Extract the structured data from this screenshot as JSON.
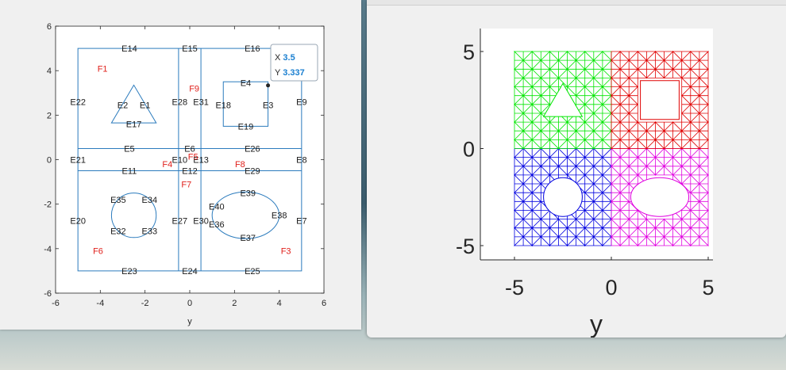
{
  "left_figure": {
    "xlabel": "y",
    "x_ticks": [
      "-6",
      "-4",
      "-2",
      "0",
      "2",
      "4",
      "6"
    ],
    "y_ticks": [
      "6",
      "4",
      "2",
      "0",
      "-2",
      "-4",
      "-6"
    ],
    "edge_labels": [
      {
        "t": "E14",
        "x": -2.7,
        "y": 5.0
      },
      {
        "t": "E15",
        "x": 0,
        "y": 5.0
      },
      {
        "t": "E16",
        "x": 2.8,
        "y": 5.0
      },
      {
        "t": "E22",
        "x": -5.0,
        "y": 2.6
      },
      {
        "t": "E2",
        "x": -3.0,
        "y": 2.45
      },
      {
        "t": "E1",
        "x": -2.0,
        "y": 2.45
      },
      {
        "t": "E28",
        "x": -0.45,
        "y": 2.6
      },
      {
        "t": "E31",
        "x": 0.5,
        "y": 2.6
      },
      {
        "t": "E18",
        "x": 1.5,
        "y": 2.45
      },
      {
        "t": "E4",
        "x": 2.5,
        "y": 3.45
      },
      {
        "t": "E3",
        "x": 3.5,
        "y": 2.45
      },
      {
        "t": "E9",
        "x": 5.0,
        "y": 2.6
      },
      {
        "t": "E17",
        "x": -2.5,
        "y": 1.6
      },
      {
        "t": "E19",
        "x": 2.5,
        "y": 1.5
      },
      {
        "t": "E5",
        "x": -2.7,
        "y": 0.5
      },
      {
        "t": "E6",
        "x": 0,
        "y": 0.5
      },
      {
        "t": "E26",
        "x": 2.8,
        "y": 0.5
      },
      {
        "t": "E21",
        "x": -5.0,
        "y": 0
      },
      {
        "t": "E10",
        "x": -0.45,
        "y": 0
      },
      {
        "t": "E13",
        "x": 0.5,
        "y": 0
      },
      {
        "t": "E8",
        "x": 5.0,
        "y": 0
      },
      {
        "t": "E11",
        "x": -2.7,
        "y": -0.5
      },
      {
        "t": "E12",
        "x": 0,
        "y": -0.5
      },
      {
        "t": "E29",
        "x": 2.8,
        "y": -0.5
      },
      {
        "t": "E35",
        "x": -3.2,
        "y": -1.8
      },
      {
        "t": "E34",
        "x": -1.8,
        "y": -1.8
      },
      {
        "t": "E39",
        "x": 2.6,
        "y": -1.5
      },
      {
        "t": "E40",
        "x": 1.2,
        "y": -2.1
      },
      {
        "t": "E38",
        "x": 4.0,
        "y": -2.5
      },
      {
        "t": "E20",
        "x": -5.0,
        "y": -2.75
      },
      {
        "t": "E27",
        "x": -0.45,
        "y": -2.75
      },
      {
        "t": "E30",
        "x": 0.5,
        "y": -2.75
      },
      {
        "t": "E36",
        "x": 1.2,
        "y": -2.9
      },
      {
        "t": "E7",
        "x": 5.0,
        "y": -2.75
      },
      {
        "t": "E32",
        "x": -3.2,
        "y": -3.2
      },
      {
        "t": "E33",
        "x": -1.8,
        "y": -3.2
      },
      {
        "t": "E37",
        "x": 2.6,
        "y": -3.5
      },
      {
        "t": "E23",
        "x": -2.7,
        "y": -5.0
      },
      {
        "t": "E24",
        "x": 0,
        "y": -5.0
      },
      {
        "t": "E25",
        "x": 2.8,
        "y": -5.0
      }
    ],
    "face_labels": [
      {
        "t": "F1",
        "x": -3.9,
        "y": 4.1
      },
      {
        "t": "F9",
        "x": 0.2,
        "y": 3.2
      },
      {
        "t": "F4",
        "x": -1.0,
        "y": -0.2
      },
      {
        "t": "F5",
        "x": 0.15,
        "y": 0.15
      },
      {
        "t": "F8",
        "x": 2.25,
        "y": -0.2
      },
      {
        "t": "F7",
        "x": -0.15,
        "y": -1.1
      },
      {
        "t": "F6",
        "x": -4.1,
        "y": -4.1
      },
      {
        "t": "F3",
        "x": 4.3,
        "y": -4.1
      }
    ],
    "datatip": {
      "x_label": "X",
      "x_value": "3.5",
      "y_label": "Y",
      "y_value": "3.337",
      "x": 3.5,
      "y": 3.337
    }
  },
  "right_figure": {
    "xlabel": "y",
    "x_ticks": [
      "-5",
      "0",
      "5"
    ],
    "y_ticks": [
      "5",
      "0",
      "-5"
    ],
    "region_colors": {
      "top_left": "#00e600",
      "top_right": "#e00000",
      "bottom_left": "#0000e0",
      "bottom_right": "#e000e0"
    }
  }
}
